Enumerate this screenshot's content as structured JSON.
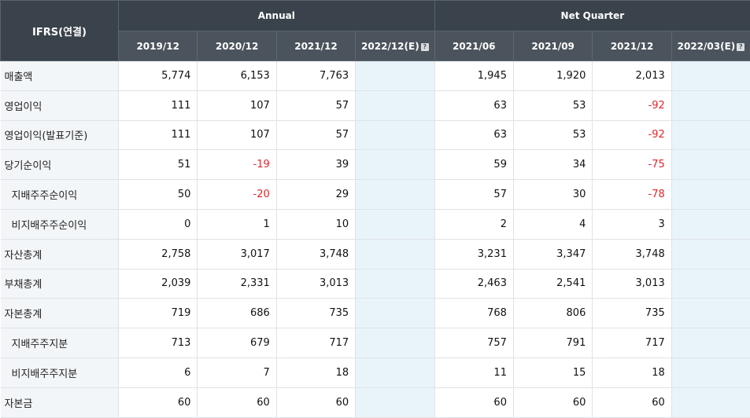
{
  "header": {
    "corner": "IFRS(연결)",
    "annual": "Annual",
    "quarter": "Net Quarter",
    "help_glyph": "?",
    "periods": [
      "2019/12",
      "2020/12",
      "2021/12",
      "2022/12(E)",
      "2021/06",
      "2021/09",
      "2021/12",
      "2022/03(E)"
    ]
  },
  "colors": {
    "header_bg": "#3a434b",
    "subheader_bg": "#4b545c",
    "negative": "#e8232b",
    "estimate_bg": "#e9f4fa"
  },
  "rows": [
    {
      "label": "매출액",
      "sub": false,
      "values": [
        "5,774",
        "6,153",
        "7,763",
        "",
        "1,945",
        "1,920",
        "2,013",
        ""
      ]
    },
    {
      "label": "영업이익",
      "sub": false,
      "values": [
        "111",
        "107",
        "57",
        "",
        "63",
        "53",
        "-92",
        ""
      ]
    },
    {
      "label": "영업이익(발표기준)",
      "sub": false,
      "values": [
        "111",
        "107",
        "57",
        "",
        "63",
        "53",
        "-92",
        ""
      ]
    },
    {
      "label": "당기순이익",
      "sub": false,
      "values": [
        "51",
        "-19",
        "39",
        "",
        "59",
        "34",
        "-75",
        ""
      ]
    },
    {
      "label": "지배주주순이익",
      "sub": true,
      "values": [
        "50",
        "-20",
        "29",
        "",
        "57",
        "30",
        "-78",
        ""
      ]
    },
    {
      "label": "비지배주주순이익",
      "sub": true,
      "values": [
        "0",
        "1",
        "10",
        "",
        "2",
        "4",
        "3",
        ""
      ]
    },
    {
      "label": "자산총계",
      "sub": false,
      "values": [
        "2,758",
        "3,017",
        "3,748",
        "",
        "3,231",
        "3,347",
        "3,748",
        ""
      ]
    },
    {
      "label": "부채총계",
      "sub": false,
      "values": [
        "2,039",
        "2,331",
        "3,013",
        "",
        "2,463",
        "2,541",
        "3,013",
        ""
      ]
    },
    {
      "label": "자본총계",
      "sub": false,
      "values": [
        "719",
        "686",
        "735",
        "",
        "768",
        "806",
        "735",
        ""
      ]
    },
    {
      "label": "지배주주지분",
      "sub": true,
      "values": [
        "713",
        "679",
        "717",
        "",
        "757",
        "791",
        "717",
        ""
      ]
    },
    {
      "label": "비지배주주지분",
      "sub": true,
      "values": [
        "6",
        "7",
        "18",
        "",
        "11",
        "15",
        "18",
        ""
      ]
    },
    {
      "label": "자본금",
      "sub": false,
      "values": [
        "60",
        "60",
        "60",
        "",
        "60",
        "60",
        "60",
        ""
      ]
    }
  ]
}
